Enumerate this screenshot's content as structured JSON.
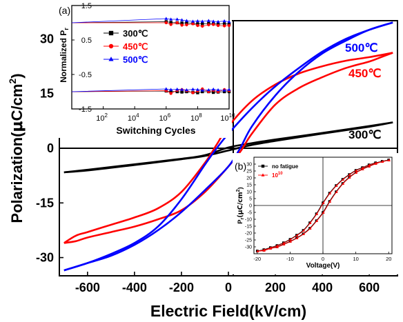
{
  "chart_data": [
    {
      "id": "main",
      "type": "line",
      "xlabel": "Electric Field(kV/cm)",
      "ylabel_main": "Polarization(",
      "ylabel_mu": "μ",
      "ylabel_unit": "C/cm",
      "ylabel_sup": "2",
      "ylabel_close": ")",
      "xlim": [
        -720,
        720
      ],
      "ylim": [
        -35,
        35
      ],
      "xticks": [
        "-600",
        "-400",
        "-200",
        "0",
        "200",
        "400",
        "600"
      ],
      "yticks": [
        "-30",
        "-15",
        "0",
        "15",
        "30"
      ],
      "series": [
        {
          "name": "300℃",
          "color": "#000000",
          "upper": [
            [
              -700,
              -6.6
            ],
            [
              -600,
              -5.9
            ],
            [
              -400,
              -4.4
            ],
            [
              -200,
              -2.9
            ],
            [
              -100,
              -1.9
            ],
            [
              0,
              0.2
            ],
            [
              100,
              1.4
            ],
            [
              200,
              2.4
            ],
            [
              400,
              4.2
            ],
            [
              600,
              6.1
            ],
            [
              700,
              7.1
            ]
          ],
          "lower": [
            [
              700,
              7.1
            ],
            [
              600,
              5.9
            ],
            [
              400,
              4.0
            ],
            [
              200,
              2.0
            ],
            [
              100,
              0.9
            ],
            [
              0,
              -0.6
            ],
            [
              -100,
              -2.1
            ],
            [
              -200,
              -3.0
            ],
            [
              -400,
              -4.6
            ],
            [
              -600,
              -6.1
            ],
            [
              -700,
              -6.6
            ]
          ]
        },
        {
          "name": "450℃",
          "color": "#ff0000",
          "upper": [
            [
              -700,
              -26
            ],
            [
              -650,
              -24
            ],
            [
              -600,
              -23
            ],
            [
              -500,
              -21
            ],
            [
              -400,
              -19
            ],
            [
              -300,
              -16.5
            ],
            [
              -200,
              -12
            ],
            [
              -100,
              -4
            ],
            [
              -50,
              1
            ],
            [
              0,
              6
            ],
            [
              100,
              13
            ],
            [
              200,
              17.5
            ],
            [
              300,
              20.5
            ],
            [
              400,
              22.5
            ],
            [
              500,
              24
            ],
            [
              600,
              25
            ],
            [
              700,
              26.2
            ]
          ],
          "lower": [
            [
              700,
              26.2
            ],
            [
              650,
              25
            ],
            [
              600,
              23.8
            ],
            [
              500,
              22
            ],
            [
              400,
              19.5
            ],
            [
              300,
              16.5
            ],
            [
              200,
              12
            ],
            [
              100,
              4
            ],
            [
              50,
              -1
            ],
            [
              0,
              -5
            ],
            [
              -100,
              -12
            ],
            [
              -200,
              -17
            ],
            [
              -300,
              -19.5
            ],
            [
              -400,
              -21.5
            ],
            [
              -500,
              -23
            ],
            [
              -600,
              -24.5
            ],
            [
              -650,
              -25.5
            ],
            [
              -700,
              -26
            ]
          ]
        },
        {
          "name": "500℃",
          "color": "#0000ff",
          "upper": [
            [
              -700,
              -33.5
            ],
            [
              -600,
              -31.5
            ],
            [
              -500,
              -29
            ],
            [
              -400,
              -26
            ],
            [
              -300,
              -21.5
            ],
            [
              -200,
              -14
            ],
            [
              -100,
              -4.5
            ],
            [
              -50,
              0
            ],
            [
              0,
              4
            ],
            [
              100,
              11
            ],
            [
              200,
              17
            ],
            [
              300,
              22
            ],
            [
              400,
              26.5
            ],
            [
              500,
              30
            ],
            [
              600,
              32.5
            ],
            [
              700,
              34.5
            ]
          ],
          "lower": [
            [
              700,
              34.5
            ],
            [
              600,
              32.5
            ],
            [
              500,
              29.5
            ],
            [
              400,
              26
            ],
            [
              300,
              21
            ],
            [
              200,
              14.5
            ],
            [
              100,
              6
            ],
            [
              50,
              0
            ],
            [
              0,
              -5
            ],
            [
              -100,
              -11.5
            ],
            [
              -200,
              -17.5
            ],
            [
              -300,
              -22.5
            ],
            [
              -400,
              -26.5
            ],
            [
              -500,
              -29.5
            ],
            [
              -600,
              -31.5
            ],
            [
              -700,
              -33.5
            ]
          ]
        }
      ],
      "annotations": [
        "500℃",
        "450℃",
        "300℃"
      ]
    },
    {
      "id": "inset_a",
      "panel_label": "(a)",
      "type": "scatter",
      "xlabel": "Switching Cycles",
      "ylabel_main": "Normalized P",
      "ylabel_sub": "r",
      "xscale": "log",
      "xlim": [
        1,
        10000000000
      ],
      "ylim": [
        -1.5,
        1.5
      ],
      "xticks": [
        {
          "base": "10",
          "exp": "2",
          "value": 100
        },
        {
          "base": "10",
          "exp": "4",
          "value": 10000
        },
        {
          "base": "10",
          "exp": "6",
          "value": 1000000
        },
        {
          "base": "10",
          "exp": "8",
          "value": 100000000
        },
        {
          "base": "10",
          "exp": "10",
          "value": 10000000000
        }
      ],
      "yticks": [
        "-1.5",
        "-0.5",
        "0.5",
        "1.5"
      ],
      "series": [
        {
          "name": "300℃",
          "color": "#000000",
          "marker": "square",
          "x": [
            1,
            1000000,
            2000000,
            5000000,
            10000000,
            20000000,
            50000000,
            100000000,
            200000000,
            500000000,
            1000000000,
            2000000000,
            5000000000,
            10000000000
          ],
          "y_pos": [
            1.0,
            1.03,
            1.01,
            1.0,
            0.99,
            1.0,
            0.98,
            0.97,
            0.97,
            0.98,
            0.97,
            0.96,
            0.97,
            0.96
          ],
          "y_neg": [
            -1.0,
            -0.98,
            -0.99,
            -1.0,
            -1.01,
            -1.0,
            -1.02,
            -1.03,
            -1.0,
            -1.0,
            -1.02,
            -1.01,
            -1.0,
            -1.0
          ]
        },
        {
          "name": "450℃",
          "color": "#ff0000",
          "marker": "circle",
          "x": [
            1,
            1000000,
            2000000,
            5000000,
            10000000,
            20000000,
            50000000,
            100000000,
            200000000,
            500000000,
            1000000000,
            2000000000,
            5000000000,
            10000000000
          ],
          "y_pos": [
            1.0,
            1.0,
            0.95,
            1.0,
            0.93,
            0.94,
            0.97,
            0.92,
            0.9,
            0.94,
            0.95,
            0.92,
            0.91,
            0.92
          ],
          "y_neg": [
            -1.0,
            -0.97,
            -1.05,
            -0.96,
            -0.94,
            -0.97,
            -1.03,
            -0.98,
            -0.92,
            -1.0,
            -0.96,
            -1.0,
            -0.94,
            -0.97
          ]
        },
        {
          "name": "500℃",
          "color": "#0000ff",
          "marker": "triangle",
          "x": [
            1,
            1000000,
            2000000,
            5000000,
            10000000,
            20000000,
            50000000,
            100000000,
            200000000,
            500000000,
            1000000000,
            2000000000,
            5000000000,
            10000000000
          ],
          "y_pos": [
            1.0,
            1.12,
            1.1,
            1.1,
            1.08,
            1.06,
            1.04,
            1.05,
            1.04,
            1.06,
            1.04,
            1.03,
            1.05,
            1.03
          ],
          "y_neg": [
            -1.0,
            -0.92,
            -0.94,
            -0.93,
            -0.94,
            -0.95,
            -0.93,
            -0.94,
            -0.96,
            -0.95,
            -0.93,
            -0.95,
            -0.96,
            -0.94
          ]
        }
      ]
    },
    {
      "id": "inset_b",
      "panel_label": "(b)",
      "type": "line",
      "xlabel": "Voltage(V)",
      "ylabel_main": "P",
      "ylabel_sub": "r",
      "ylabel_unit": "(μC/cm",
      "ylabel_sup": "2",
      "ylabel_close": ")",
      "xlim": [
        -21,
        21
      ],
      "ylim": [
        -35,
        35
      ],
      "xticks": [
        "-20",
        "-10",
        "0",
        "10",
        "20"
      ],
      "yticks": [
        "-30",
        "-25",
        "-20",
        "-15",
        "-10",
        "-5",
        "0",
        "5",
        "10",
        "15",
        "20",
        "25",
        "30"
      ],
      "series": [
        {
          "name": "no fatigue",
          "color": "#000000",
          "marker": "square",
          "upper": [
            [
              -20,
              -33
            ],
            [
              -18,
              -32
            ],
            [
              -16,
              -30.5
            ],
            [
              -14,
              -29
            ],
            [
              -12,
              -27
            ],
            [
              -10,
              -24.5
            ],
            [
              -8,
              -21.5
            ],
            [
              -6,
              -18
            ],
            [
              -4,
              -12.5
            ],
            [
              -2,
              -6
            ],
            [
              0,
              2
            ],
            [
              2,
              9
            ],
            [
              4,
              14.5
            ],
            [
              6,
              19
            ],
            [
              8,
              22.5
            ],
            [
              10,
              25.5
            ],
            [
              12,
              27.5
            ],
            [
              14,
              29.5
            ],
            [
              16,
              31
            ],
            [
              18,
              32
            ],
            [
              20,
              33
            ]
          ],
          "lower": [
            [
              20,
              33
            ],
            [
              18,
              32
            ],
            [
              16,
              30.5
            ],
            [
              14,
              28.5
            ],
            [
              12,
              26.5
            ],
            [
              10,
              24
            ],
            [
              8,
              20.5
            ],
            [
              6,
              16
            ],
            [
              4,
              10
            ],
            [
              2,
              3
            ],
            [
              0,
              -5
            ],
            [
              -2,
              -11
            ],
            [
              -4,
              -16.5
            ],
            [
              -6,
              -20.5
            ],
            [
              -8,
              -23.5
            ],
            [
              -10,
              -26
            ],
            [
              -12,
              -28
            ],
            [
              -14,
              -30
            ],
            [
              -16,
              -31
            ],
            [
              -18,
              -32.5
            ],
            [
              -20,
              -33
            ]
          ]
        },
        {
          "name": "10",
          "name_sup": "10",
          "color": "#ff0000",
          "marker": "triangle",
          "upper": [
            [
              -20,
              -33
            ],
            [
              -18,
              -32
            ],
            [
              -16,
              -30.5
            ],
            [
              -14,
              -29
            ],
            [
              -12,
              -27
            ],
            [
              -10,
              -24.5
            ],
            [
              -8,
              -21.5
            ],
            [
              -6,
              -18
            ],
            [
              -4,
              -12.5
            ],
            [
              -2,
              -6
            ],
            [
              0,
              2
            ],
            [
              2,
              9
            ],
            [
              4,
              14.5
            ],
            [
              6,
              19
            ],
            [
              8,
              22.5
            ],
            [
              10,
              25.5
            ],
            [
              12,
              27.5
            ],
            [
              14,
              29.5
            ],
            [
              16,
              31
            ],
            [
              18,
              32
            ],
            [
              20,
              33
            ]
          ],
          "lower": [
            [
              20,
              33
            ],
            [
              18,
              32
            ],
            [
              16,
              30.5
            ],
            [
              14,
              28.5
            ],
            [
              12,
              26.5
            ],
            [
              10,
              24
            ],
            [
              8,
              20.5
            ],
            [
              6,
              16
            ],
            [
              4,
              10
            ],
            [
              2,
              3
            ],
            [
              0,
              -5
            ],
            [
              -2,
              -11
            ],
            [
              -4,
              -16.5
            ],
            [
              -6,
              -20.5
            ],
            [
              -8,
              -23.5
            ],
            [
              -10,
              -26
            ],
            [
              -12,
              -28
            ],
            [
              -14,
              -30
            ],
            [
              -16,
              -31
            ],
            [
              -18,
              -32.5
            ],
            [
              -20,
              -33
            ]
          ]
        }
      ]
    }
  ]
}
